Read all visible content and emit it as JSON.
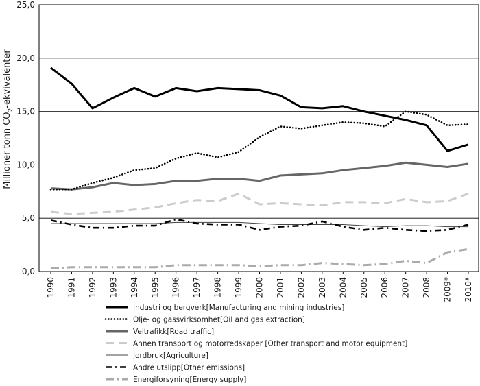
{
  "chart_data": {
    "type": "line",
    "ylabel": "Millioner tonn CO2-ekvivalenter",
    "ylabel_parts": {
      "main": "Millioner tonn CO",
      "sub": "2",
      "rest": "-ekvivalenter"
    },
    "ylim": [
      0,
      25
    ],
    "yticks": [
      "0,0",
      "5,0",
      "10,0",
      "15,0",
      "20,0",
      "25,0"
    ],
    "ytick_values": [
      0,
      5,
      10,
      15,
      20,
      25
    ],
    "grid": "horizontal",
    "legend_position": "bottom",
    "categories": [
      "1990",
      "1991",
      "1992",
      "1993",
      "1994",
      "1995",
      "1996",
      "1997",
      "1998",
      "1999",
      "2000",
      "2001",
      "2002",
      "2003",
      "2004",
      "2005",
      "2006",
      "2007",
      "2008",
      "2009*",
      "2010*"
    ],
    "series": [
      {
        "name": "Industri og bergverk[Manufacturing and mining industries]",
        "style": "solid-thick",
        "color": "#000000",
        "values": [
          19.1,
          17.6,
          15.3,
          16.3,
          17.2,
          16.4,
          17.2,
          16.9,
          17.2,
          17.1,
          17.0,
          16.5,
          15.4,
          15.3,
          15.5,
          15.0,
          14.6,
          14.2,
          13.7,
          11.3,
          11.9
        ]
      },
      {
        "name": "Olje- og gassvirksomhet[Oil and gas extraction]",
        "style": "dotted",
        "color": "#000000",
        "values": [
          7.7,
          7.7,
          8.3,
          8.8,
          9.5,
          9.7,
          10.6,
          11.1,
          10.7,
          11.2,
          12.6,
          13.6,
          13.4,
          13.7,
          14.0,
          13.9,
          13.6,
          15.0,
          14.7,
          13.7,
          13.8
        ]
      },
      {
        "name": "Veitrafikk[Road traffic]",
        "style": "solid-medium",
        "color": "#666666",
        "values": [
          7.8,
          7.7,
          7.9,
          8.3,
          8.1,
          8.2,
          8.5,
          8.5,
          8.7,
          8.7,
          8.5,
          9.0,
          9.1,
          9.2,
          9.5,
          9.7,
          9.9,
          10.2,
          10.0,
          9.8,
          10.1
        ]
      },
      {
        "name": "Annen transport og motorredskaper [Other transport and motor equipment]",
        "style": "dashed",
        "color": "#cccccc",
        "values": [
          5.6,
          5.4,
          5.5,
          5.6,
          5.8,
          6.0,
          6.4,
          6.7,
          6.6,
          7.3,
          6.3,
          6.4,
          6.3,
          6.2,
          6.5,
          6.5,
          6.4,
          6.8,
          6.5,
          6.6,
          7.3
        ]
      },
      {
        "name": "Jordbruk[Agriculture]",
        "style": "solid-thin",
        "color": "#444444",
        "values": [
          4.5,
          4.5,
          4.5,
          4.5,
          4.5,
          4.5,
          4.6,
          4.6,
          4.6,
          4.6,
          4.5,
          4.4,
          4.4,
          4.4,
          4.4,
          4.3,
          4.2,
          4.3,
          4.3,
          4.2,
          4.2
        ]
      },
      {
        "name": "Andre utslipp[Other emissions]",
        "style": "dashdot",
        "color": "#000000",
        "values": [
          4.8,
          4.4,
          4.1,
          4.1,
          4.3,
          4.3,
          4.9,
          4.5,
          4.4,
          4.4,
          3.9,
          4.2,
          4.3,
          4.7,
          4.2,
          3.9,
          4.1,
          3.9,
          3.8,
          3.9,
          4.4
        ]
      },
      {
        "name": "Energiforsyning[Energy supply]",
        "style": "dashdot-gray",
        "color": "#aaaaaa",
        "values": [
          0.3,
          0.4,
          0.4,
          0.4,
          0.4,
          0.4,
          0.6,
          0.6,
          0.6,
          0.6,
          0.5,
          0.6,
          0.6,
          0.8,
          0.7,
          0.6,
          0.7,
          1.0,
          0.8,
          1.8,
          2.1
        ]
      }
    ]
  }
}
